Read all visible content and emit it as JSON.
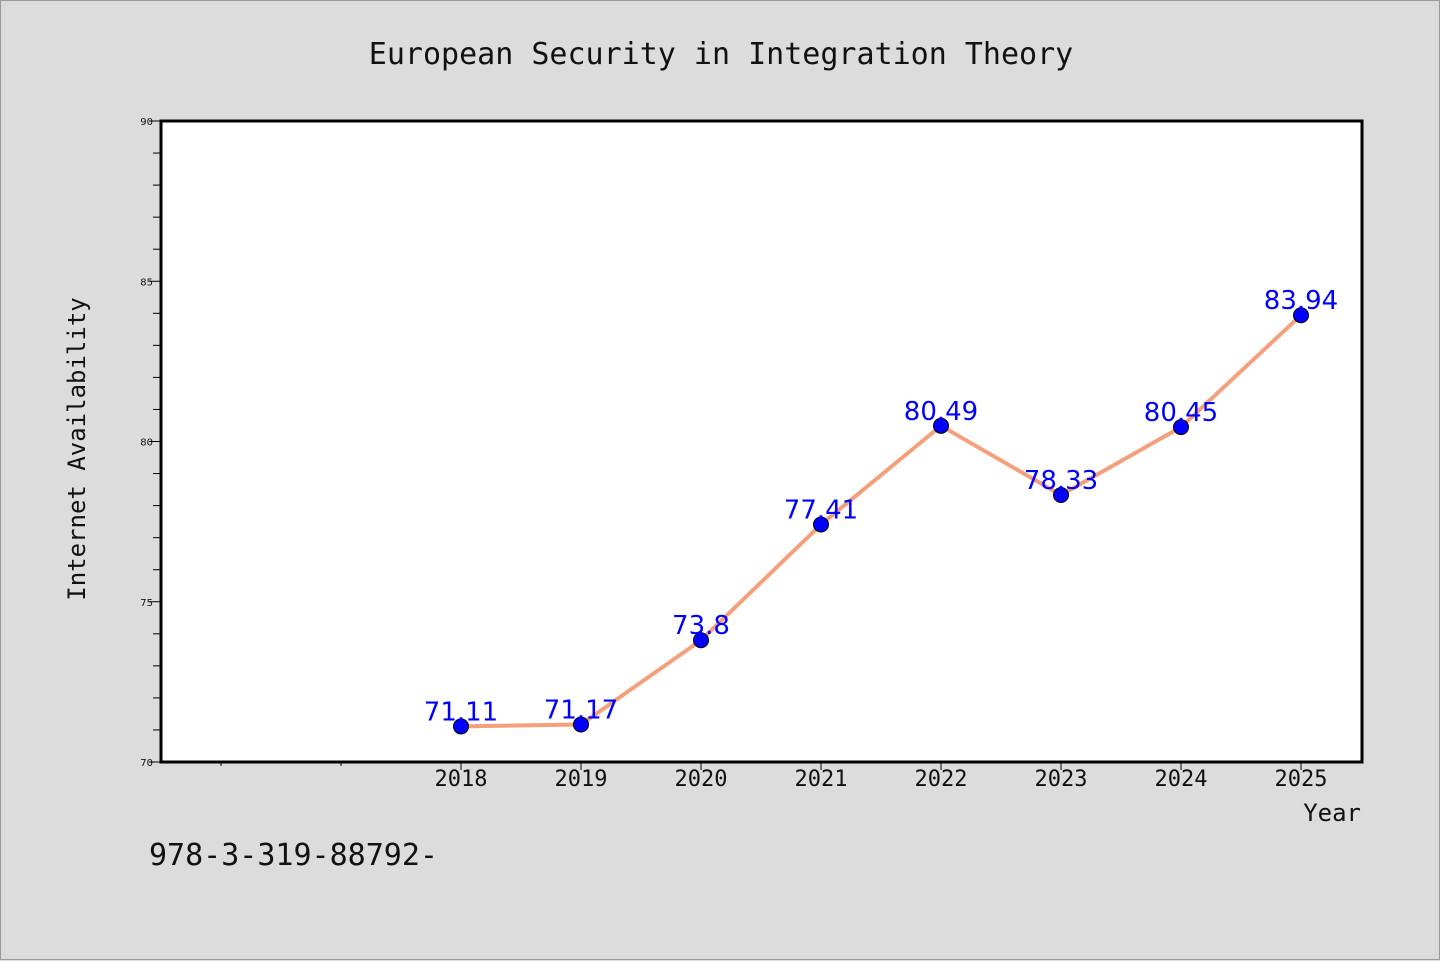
{
  "chart_data": {
    "type": "line",
    "title": "European Security in Integration Theory",
    "xlabel": "Year",
    "ylabel": "Internet Availability",
    "categories": [
      "2018",
      "2019",
      "2020",
      "2021",
      "2022",
      "2023",
      "2024",
      "2025"
    ],
    "series": [
      {
        "values": [
          71.11,
          71.17,
          73.8,
          77.41,
          80.49,
          78.33,
          80.45,
          83.94
        ],
        "data_labels": [
          "71.11",
          "71.17",
          "73.8",
          "77.41",
          "80.49",
          "78.33",
          "80.45",
          "83.94"
        ],
        "line_color": "#f4a07c",
        "marker_color": "#0000ff"
      }
    ],
    "ylim": [
      70,
      90
    ],
    "yticks": [
      "70",
      "75",
      "80",
      "85",
      "90"
    ],
    "grid": false
  },
  "footer": {
    "text": "978-3-319-88792-"
  }
}
